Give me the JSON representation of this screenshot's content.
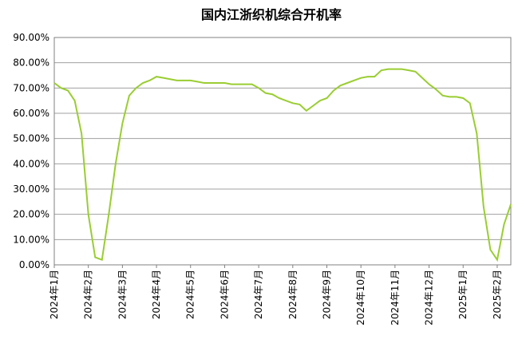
{
  "chart_data": {
    "type": "line",
    "title": "国内江浙织机综合开机率",
    "categories": [
      "2024年1月",
      null,
      null,
      null,
      null,
      "2024年2月",
      null,
      null,
      null,
      null,
      "2024年3月",
      null,
      null,
      null,
      null,
      "2024年4月",
      null,
      null,
      null,
      null,
      "2024年5月",
      null,
      null,
      null,
      null,
      "2024年6月",
      null,
      null,
      null,
      null,
      "2024年7月",
      null,
      null,
      null,
      null,
      "2024年8月",
      null,
      null,
      null,
      null,
      "2024年9月",
      null,
      null,
      null,
      null,
      "2024年10月",
      null,
      null,
      null,
      null,
      "2024年11月",
      null,
      null,
      null,
      null,
      "2024年12月",
      null,
      null,
      null,
      null,
      "2025年1月",
      null,
      null,
      null,
      null,
      "2025年2月",
      null,
      null
    ],
    "series": [
      {
        "color": "#9acd32",
        "values": [
          72,
          70,
          69,
          65,
          52,
          20,
          3,
          2,
          20,
          40,
          56,
          67,
          70,
          72,
          73,
          74.5,
          74,
          73.5,
          73,
          73,
          73,
          72.5,
          72,
          72,
          72,
          72,
          71.5,
          71.5,
          71.5,
          71.5,
          70,
          68,
          67.5,
          66,
          65,
          64,
          63.5,
          61,
          63,
          65,
          66,
          69,
          71,
          72,
          73,
          74,
          74.5,
          74.5,
          77,
          77.5,
          77.5,
          77.5,
          77,
          76.5,
          74,
          71.5,
          69.5,
          67,
          66.5,
          66.5,
          66,
          64,
          52,
          23,
          6,
          2,
          16,
          24
        ]
      }
    ],
    "ylim": [
      0,
      90
    ],
    "yticks": [
      {
        "value": 0,
        "label": "0.00%"
      },
      {
        "value": 10,
        "label": "10.00%"
      },
      {
        "value": 20,
        "label": "20.00%"
      },
      {
        "value": 30,
        "label": "30.00%"
      },
      {
        "value": 40,
        "label": "40.00%"
      },
      {
        "value": 50,
        "label": "50.00%"
      },
      {
        "value": 60,
        "label": "60.00%"
      },
      {
        "value": 70,
        "label": "70.00%"
      },
      {
        "value": 80,
        "label": "80.00%"
      },
      {
        "value": 90,
        "label": "90.00%"
      }
    ],
    "grid": true
  }
}
